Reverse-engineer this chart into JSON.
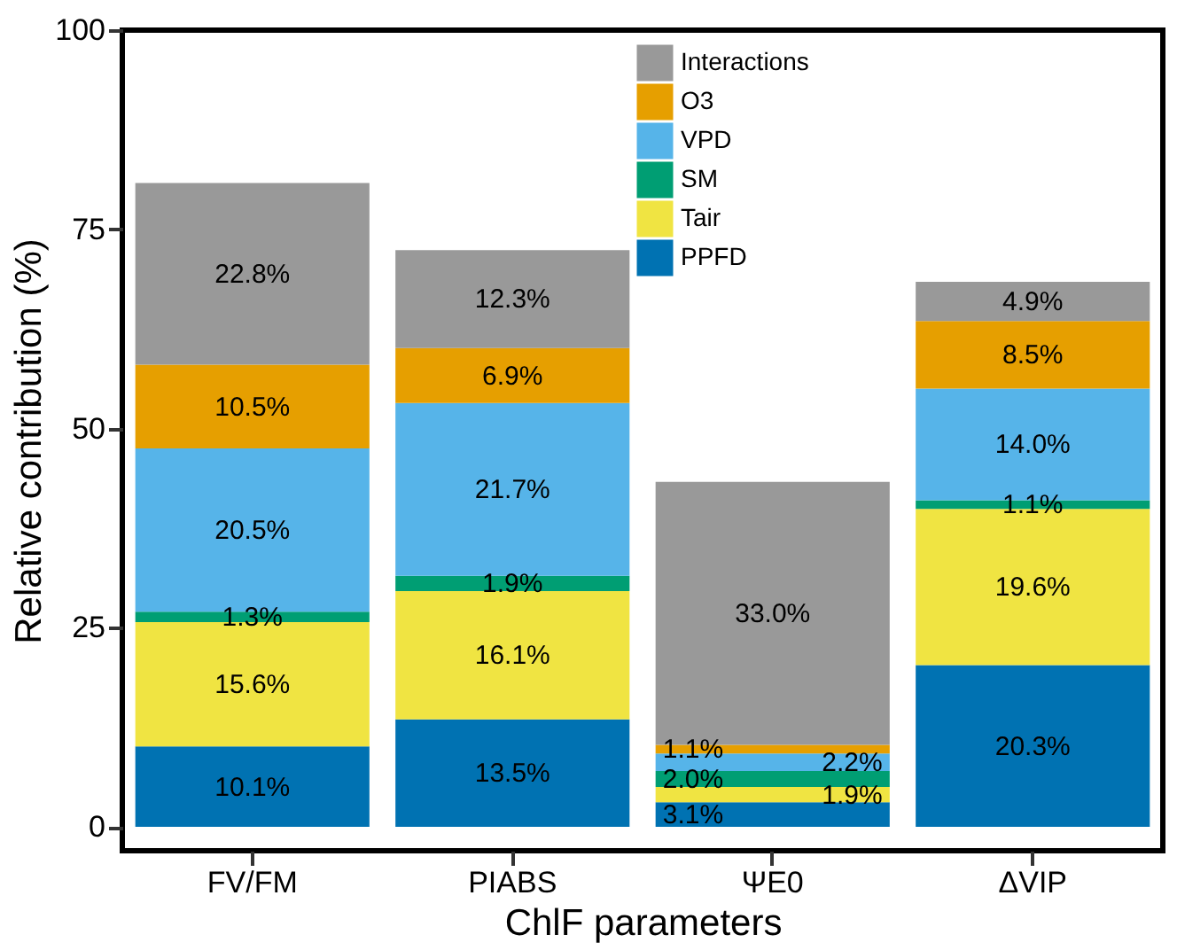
{
  "chart_data": {
    "type": "bar",
    "stacked": true,
    "xlabel": "ChlF parameters",
    "ylabel": "Relative contribution (%)",
    "categories": [
      "FV/FM",
      "PIABS",
      "ΨE0",
      "ΔVIP"
    ],
    "series": [
      {
        "name": "PPFD",
        "color": "#0072b2",
        "values": [
          10.1,
          13.5,
          3.1,
          20.3
        ],
        "value_labels": [
          "10.1%",
          "13.5%",
          "3.1%",
          "20.3%"
        ]
      },
      {
        "name": "Tair",
        "color": "#f0e442",
        "values": [
          15.6,
          16.1,
          1.9,
          19.6
        ],
        "value_labels": [
          "15.6%",
          "16.1%",
          "1.9%",
          "19.6%"
        ]
      },
      {
        "name": "SM",
        "color": "#009e73",
        "values": [
          1.3,
          1.9,
          2.0,
          1.1
        ],
        "value_labels": [
          "1.3%",
          "1.9%",
          "2.0%",
          "1.1%"
        ]
      },
      {
        "name": "VPD",
        "color": "#56b4e9",
        "values": [
          20.5,
          21.7,
          2.2,
          14.0
        ],
        "value_labels": [
          "20.5%",
          "21.7%",
          "2.2%",
          "14.0%"
        ]
      },
      {
        "name": "O3",
        "color": "#e69f00",
        "values": [
          10.5,
          6.9,
          1.1,
          8.5
        ],
        "value_labels": [
          "10.5%",
          "6.9%",
          "1.1%",
          "8.5%"
        ]
      },
      {
        "name": "Interactions",
        "color": "#999999",
        "values": [
          22.8,
          12.3,
          33.0,
          4.9
        ],
        "value_labels": [
          "22.8%",
          "12.3%",
          "33.0%",
          "4.9%"
        ]
      }
    ],
    "ylim": [
      -3,
      100
    ],
    "yticks": [
      0,
      25,
      50,
      75,
      100
    ],
    "grid": false,
    "legend": "top right"
  }
}
